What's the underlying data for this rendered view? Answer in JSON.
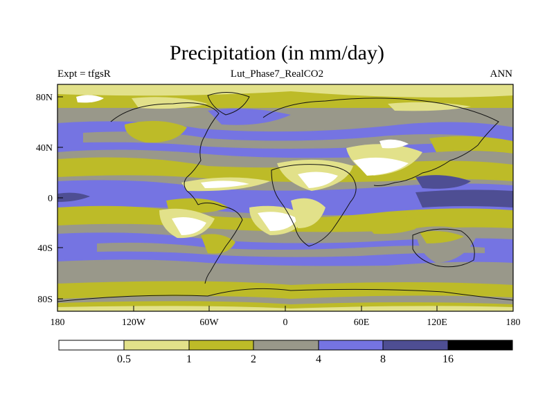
{
  "figure": {
    "title": "Precipitation (in mm/day)",
    "subtitle_center": "Lut_Phase7_RealCO2",
    "subtitle_left": "Expt = tfgsR",
    "subtitle_right": "ANN"
  },
  "axes": {
    "x_ticks": [
      "180",
      "120W",
      "60W",
      "0",
      "60E",
      "120E",
      "180"
    ],
    "y_ticks": [
      "80N",
      "40N",
      "0",
      "40S",
      "80S"
    ]
  },
  "colorbar": {
    "labels": [
      "0.5",
      "1",
      "2",
      "4",
      "8",
      "16"
    ],
    "colors": [
      "#ffffff",
      "#e2e18a",
      "#bdbb28",
      "#99988a",
      "#7574e2",
      "#4e4e93",
      "#000000"
    ]
  },
  "palette": {
    "c0": "#ffffff",
    "c1": "#e2e18a",
    "c2": "#bdbb28",
    "c3": "#99988a",
    "c4": "#7574e2",
    "c5": "#4e4e93"
  }
}
